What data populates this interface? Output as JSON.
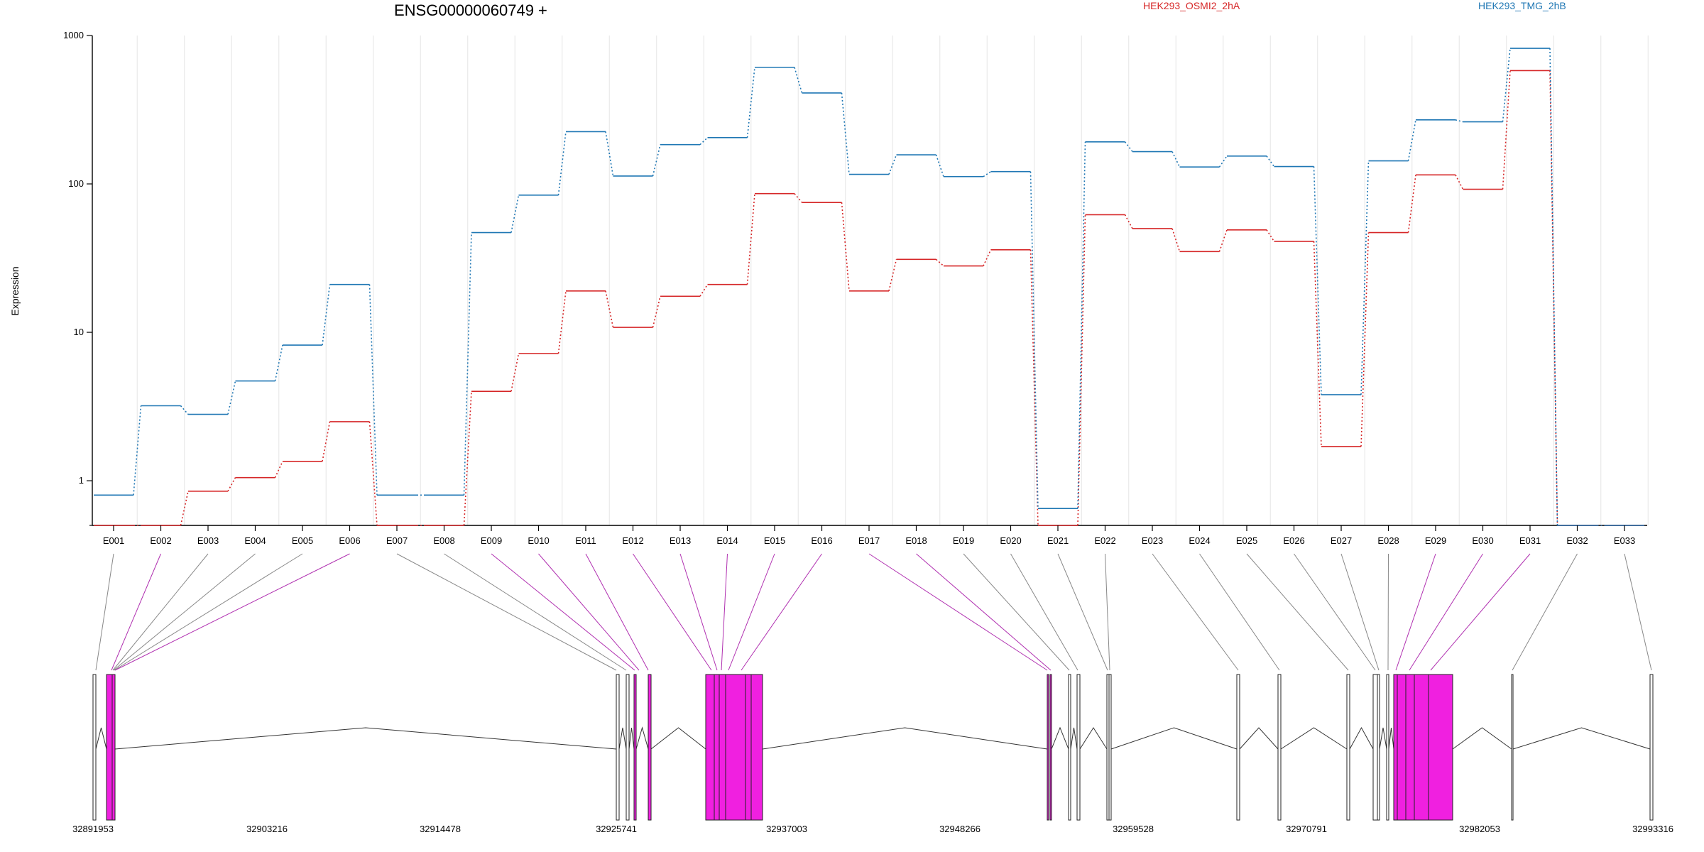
{
  "chart_data": {
    "type": "line",
    "title": "ENSG00000060749 +",
    "ylabel": "Expression",
    "yscale": "log",
    "ylim": [
      0.5,
      1000
    ],
    "yticks": [
      "1",
      "10",
      "100",
      "1000"
    ],
    "categories": [
      "E001",
      "E002",
      "E003",
      "E004",
      "E005",
      "E006",
      "E007",
      "E008",
      "E009",
      "E010",
      "E011",
      "E012",
      "E013",
      "E014",
      "E015",
      "E016",
      "E017",
      "E018",
      "E019",
      "E020",
      "E021",
      "E022",
      "E023",
      "E024",
      "E025",
      "E026",
      "E027",
      "E028",
      "E029",
      "E030",
      "E031",
      "E032",
      "E033"
    ],
    "series": [
      {
        "name": "HEK293_OSMI2_2hA",
        "color": "#d62728",
        "values": [
          0.5,
          0.5,
          0.85,
          1.05,
          1.35,
          2.5,
          0.5,
          0.5,
          4.0,
          7.2,
          19,
          10.8,
          17.5,
          21,
          86,
          75,
          19,
          31,
          28,
          36,
          0.5,
          62,
          50,
          35,
          49,
          41,
          1.7,
          47,
          115,
          92,
          580,
          0.5,
          0.5
        ]
      },
      {
        "name": "HEK293_TMG_2hB",
        "color": "#1f77b4",
        "values": [
          0.8,
          3.2,
          2.8,
          4.7,
          8.2,
          21,
          0.8,
          0.8,
          47,
          84,
          225,
          113,
          184,
          205,
          610,
          410,
          116,
          157,
          112,
          121,
          0.65,
          192,
          165,
          130,
          154,
          131,
          3.8,
          143,
          270,
          262,
          820,
          0.5,
          0.5
        ]
      }
    ],
    "gene_model": {
      "coordinate_ticks": [
        "32891953",
        "32903216",
        "32914478",
        "32925741",
        "32937003",
        "32948266",
        "32959528",
        "32970791",
        "32982053",
        "32993316"
      ],
      "exon_highlight_color": "#f020e0",
      "highlighted_exons": [
        "E002",
        "E006",
        "E009",
        "E010",
        "E011",
        "E012",
        "E013",
        "E014",
        "E015",
        "E016",
        "E017",
        "E018",
        "E029",
        "E030",
        "E031"
      ]
    }
  }
}
